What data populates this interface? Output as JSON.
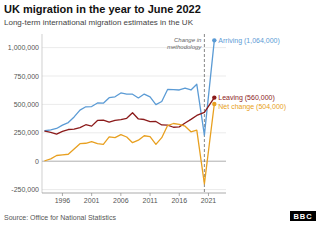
{
  "chart_data": {
    "type": "line",
    "title": "UK migration in the year to June 2022",
    "subtitle": "Long-term international migration estimates in the UK",
    "source": "Source: Office for National Statistics",
    "x": [
      1993,
      1994,
      1995,
      1996,
      1997,
      1998,
      1999,
      2000,
      2001,
      2002,
      2003,
      2004,
      2005,
      2006,
      2007,
      2008,
      2009,
      2010,
      2011,
      2012,
      2013,
      2014,
      2015,
      2016,
      2017,
      2018,
      2019,
      2020.3,
      2022
    ],
    "series": [
      {
        "name": "Arriving (1,064,000)",
        "color": "#5b9bd5",
        "values": [
          268000,
          275000,
          288000,
          318000,
          340000,
          390000,
          450000,
          479000,
          481000,
          513000,
          511000,
          559000,
          567000,
          601000,
          591000,
          590000,
          557000,
          591000,
          566000,
          498000,
          526000,
          632000,
          631000,
          627000,
          644000,
          627000,
          677000,
          230000,
          1064000
        ]
      },
      {
        "name": "Leaving (560,000)",
        "color": "#8b1a1a",
        "values": [
          264000,
          254000,
          238000,
          262000,
          279000,
          283000,
          296000,
          321000,
          309000,
          359000,
          362000,
          344000,
          359000,
          367000,
          378000,
          427000,
          372000,
          367000,
          349000,
          350000,
          319000,
          318000,
          299000,
          302000,
          336000,
          368000,
          403000,
          430000,
          560000
        ]
      },
      {
        "name": "Net change (504,000)",
        "color": "#e8a020",
        "values": [
          4000,
          21000,
          50000,
          56000,
          61000,
          107000,
          154000,
          158000,
          172000,
          154000,
          149000,
          215000,
          208000,
          234000,
          213000,
          163000,
          185000,
          224000,
          217000,
          148000,
          207000,
          314000,
          332000,
          325000,
          308000,
          259000,
          274000,
          -200000,
          504000
        ]
      }
    ],
    "xlim": [
      1992.5,
      2024
    ],
    "xticks": [
      1996,
      2001,
      2006,
      2011,
      2016,
      2021
    ],
    "ylim": [
      -280000,
      1120000
    ],
    "yticks": [
      {
        "value": -250000,
        "label": "-250,000"
      },
      0,
      {
        "value": 250000,
        "label": "250,000"
      },
      {
        "value": 500000,
        "label": "500,000"
      },
      {
        "value": 750000,
        "label": "750,000"
      },
      {
        "value": 1000000,
        "label": "1,000,000"
      }
    ],
    "grid": true,
    "annotations": [
      {
        "text": "Change in\nmethodology",
        "x": 2020.3
      },
      {
        "text": "BBC"
      }
    ]
  }
}
